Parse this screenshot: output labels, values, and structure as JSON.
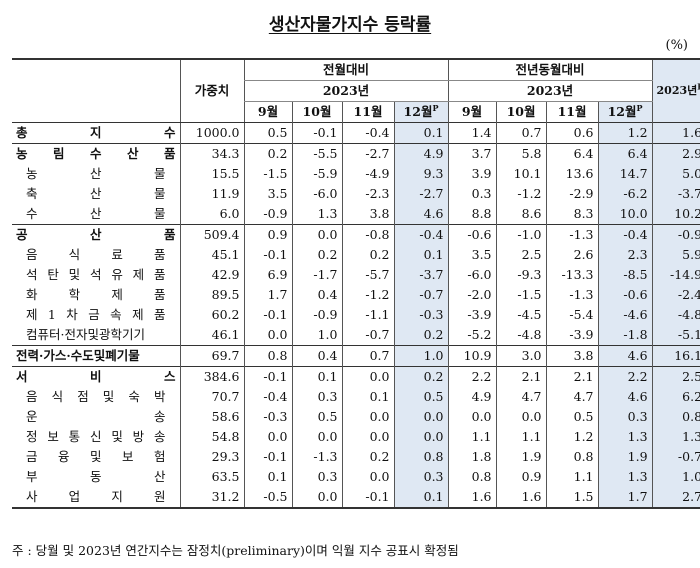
{
  "title": "생산자물가지수 등락률",
  "unit": "(%)",
  "header": {
    "weight": "가중치",
    "mom": "전월대비",
    "yoy": "전년동월대비",
    "year_mom": "2023년",
    "year_yoy": "2023년",
    "annual": "2023년",
    "annual_sup": "P",
    "months": [
      "9월",
      "10월",
      "11월",
      "12월"
    ],
    "p_mark": "P"
  },
  "rows": [
    {
      "label": "총 지 수",
      "weight": "1000.0",
      "mom": [
        "0.5",
        "-0.1",
        "-0.4",
        "0.1"
      ],
      "yoy": [
        "1.4",
        "0.7",
        "0.6",
        "1.2"
      ],
      "annual": "1.6"
    },
    {
      "label": "농 림 수 산 품",
      "weight": "34.3",
      "mom": [
        "0.2",
        "-5.5",
        "-2.7",
        "4.9"
      ],
      "yoy": [
        "3.7",
        "5.8",
        "6.4",
        "6.4"
      ],
      "annual": "2.9"
    },
    {
      "label": "농 산 물",
      "weight": "15.5",
      "mom": [
        "-1.5",
        "-5.9",
        "-4.9",
        "9.3"
      ],
      "yoy": [
        "3.9",
        "10.1",
        "13.6",
        "14.7"
      ],
      "annual": "5.0"
    },
    {
      "label": "축 산 물",
      "weight": "11.9",
      "mom": [
        "3.5",
        "-6.0",
        "-2.3",
        "-2.7"
      ],
      "yoy": [
        "0.3",
        "-1.2",
        "-2.9",
        "-6.2"
      ],
      "annual": "-3.7"
    },
    {
      "label": "수 산 물",
      "weight": "6.0",
      "mom": [
        "-0.9",
        "1.3",
        "3.8",
        "4.6"
      ],
      "yoy": [
        "8.8",
        "8.6",
        "8.3",
        "10.0"
      ],
      "annual": "10.2"
    },
    {
      "label": "공 산 품",
      "weight": "509.4",
      "mom": [
        "0.9",
        "0.0",
        "-0.8",
        "-0.4"
      ],
      "yoy": [
        "-0.6",
        "-1.0",
        "-1.3",
        "-0.4"
      ],
      "annual": "-0.9"
    },
    {
      "label": "음 식 료 품",
      "weight": "45.1",
      "mom": [
        "-0.1",
        "0.2",
        "0.2",
        "0.1"
      ],
      "yoy": [
        "3.5",
        "2.5",
        "2.6",
        "2.3"
      ],
      "annual": "5.9"
    },
    {
      "label": "석 탄 및 석 유 제 품",
      "weight": "42.9",
      "mom": [
        "6.9",
        "-1.7",
        "-5.7",
        "-3.7"
      ],
      "yoy": [
        "-6.0",
        "-9.3",
        "-13.3",
        "-8.5"
      ],
      "annual": "-14.9"
    },
    {
      "label": "화 학 제 품",
      "weight": "89.5",
      "mom": [
        "1.7",
        "0.4",
        "-1.2",
        "-0.7"
      ],
      "yoy": [
        "-2.0",
        "-1.5",
        "-1.3",
        "-0.6"
      ],
      "annual": "-2.4"
    },
    {
      "label": "제 1 차 금 속 제 품",
      "weight": "60.2",
      "mom": [
        "-0.1",
        "-0.9",
        "-1.1",
        "-0.3"
      ],
      "yoy": [
        "-3.9",
        "-4.5",
        "-5.4",
        "-4.6"
      ],
      "annual": "-4.8"
    },
    {
      "label": "컴퓨터·전자및광학기기",
      "weight": "46.1",
      "mom": [
        "0.0",
        "1.0",
        "-0.7",
        "0.2"
      ],
      "yoy": [
        "-5.2",
        "-4.8",
        "-3.9",
        "-1.8"
      ],
      "annual": "-5.1"
    },
    {
      "label": "전력·가스·수도및폐기물",
      "weight": "69.7",
      "mom": [
        "0.8",
        "0.4",
        "0.7",
        "1.0"
      ],
      "yoy": [
        "10.9",
        "3.0",
        "3.8",
        "4.6"
      ],
      "annual": "16.1"
    },
    {
      "label": "서 비 스",
      "weight": "384.6",
      "mom": [
        "-0.1",
        "0.1",
        "0.0",
        "0.2"
      ],
      "yoy": [
        "2.2",
        "2.1",
        "2.1",
        "2.2"
      ],
      "annual": "2.5"
    },
    {
      "label": "음 식 점 및 숙 박",
      "weight": "70.7",
      "mom": [
        "-0.4",
        "0.3",
        "0.1",
        "0.5"
      ],
      "yoy": [
        "4.9",
        "4.7",
        "4.7",
        "4.6"
      ],
      "annual": "6.2"
    },
    {
      "label": "운 송",
      "weight": "58.6",
      "mom": [
        "-0.3",
        "0.5",
        "0.0",
        "0.0"
      ],
      "yoy": [
        "0.0",
        "0.0",
        "0.5",
        "0.3"
      ],
      "annual": "0.8"
    },
    {
      "label": "정 보 통 신 및 방 송",
      "weight": "54.8",
      "mom": [
        "0.0",
        "0.0",
        "0.0",
        "0.0"
      ],
      "yoy": [
        "1.1",
        "1.1",
        "1.2",
        "1.3"
      ],
      "annual": "1.3"
    },
    {
      "label": "금 융 및 보 험",
      "weight": "29.3",
      "mom": [
        "-0.1",
        "-1.3",
        "0.2",
        "0.8"
      ],
      "yoy": [
        "1.8",
        "1.9",
        "0.8",
        "1.9"
      ],
      "annual": "-0.7"
    },
    {
      "label": "부 동 산",
      "weight": "63.5",
      "mom": [
        "0.1",
        "0.3",
        "0.0",
        "0.3"
      ],
      "yoy": [
        "0.8",
        "0.9",
        "1.1",
        "1.3"
      ],
      "annual": "1.0"
    },
    {
      "label": "사 업 지 원",
      "weight": "31.2",
      "mom": [
        "-0.5",
        "0.0",
        "-0.1",
        "0.1"
      ],
      "yoy": [
        "1.6",
        "1.6",
        "1.5",
        "1.7"
      ],
      "annual": "2.7"
    }
  ],
  "footnote": "주 : 당월 및 2023년 연간지수는 잠정치(preliminary)이며 익월 지수 공표시 확정됨"
}
